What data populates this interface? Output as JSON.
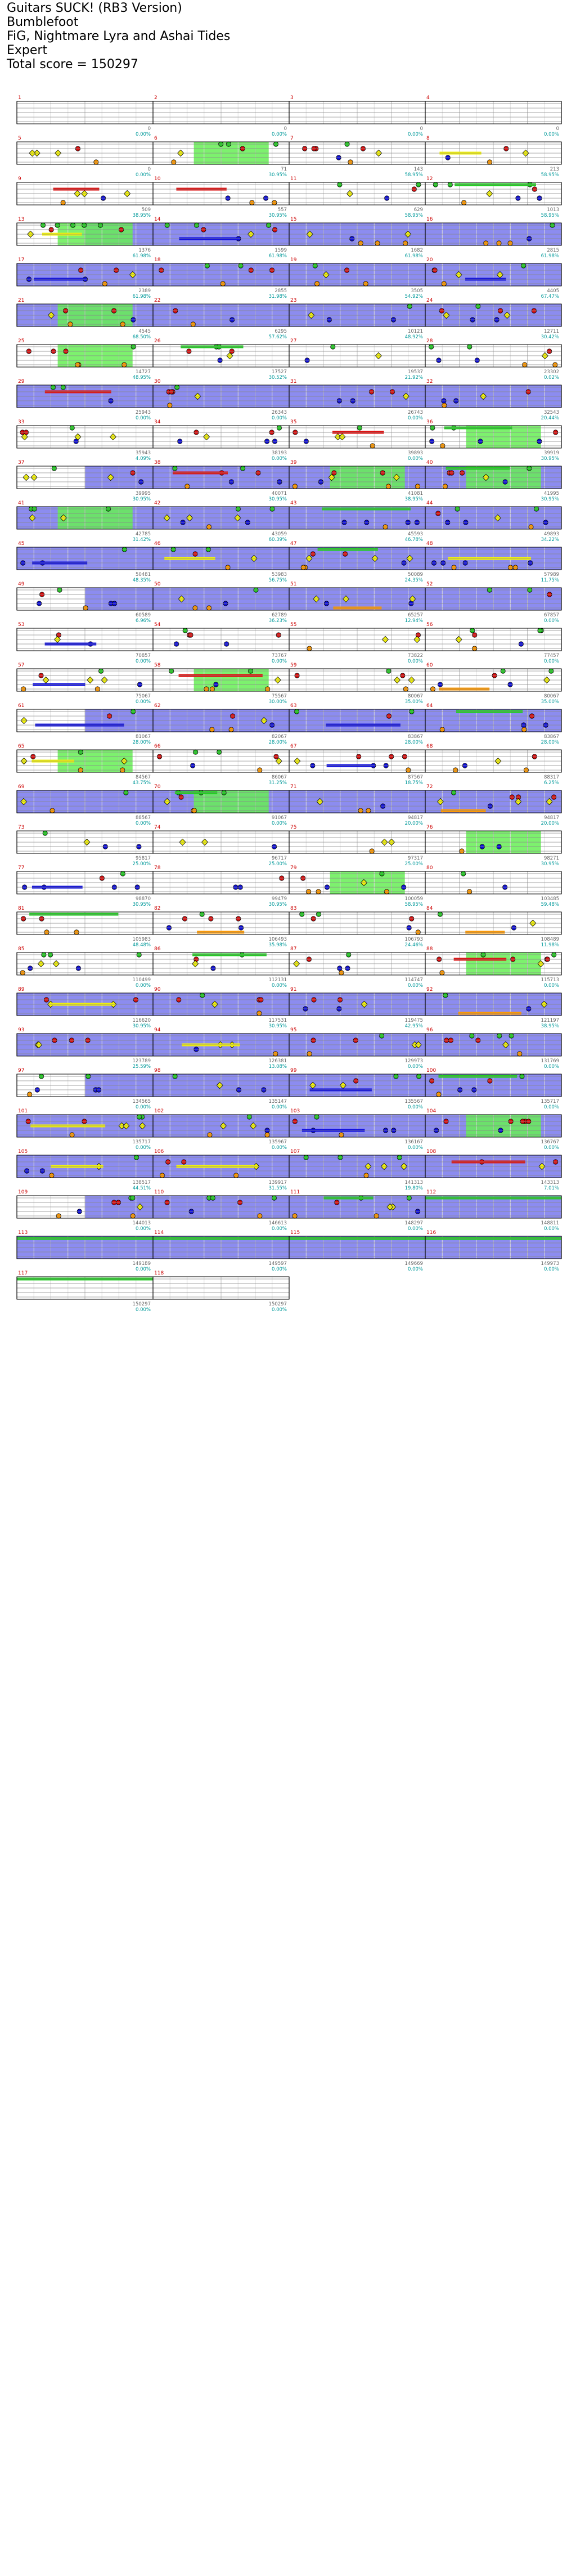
{
  "header": {
    "title": "Guitars SUCK! (RB3 Version)",
    "artist": "Bumblefoot",
    "charter": "FiG, Nightmare Lyra and Ashai Tides",
    "difficulty": "Expert",
    "total_score": "Total score = 150297"
  },
  "colors": {
    "green": "#22cc22",
    "red": "#dd1111",
    "yellow": "#f2f20a",
    "blue": "#1111dd",
    "orange": "#ff9900",
    "overdrive": "#8080ee",
    "solo": "#66ee55",
    "section_tick": "#333333",
    "score_text": "#666666",
    "percent_text": "#00999a",
    "tempo_text": "#999999"
  },
  "chart_data": {
    "type": "table",
    "columns": [
      "measure",
      "score",
      "percent"
    ],
    "measures": [
      {
        "n": 1,
        "score": "0",
        "pct": "0.00%"
      },
      {
        "n": 2,
        "score": "0",
        "pct": "0.00%"
      },
      {
        "n": 3,
        "score": "0",
        "pct": "0.00%"
      },
      {
        "n": 4,
        "score": "0",
        "pct": "0.00%"
      },
      {
        "n": 5,
        "score": "0",
        "pct": "0.00%"
      },
      {
        "n": 6,
        "score": "71",
        "pct": "30.95%"
      },
      {
        "n": 7,
        "score": "143",
        "pct": "58.95%"
      },
      {
        "n": 8,
        "score": "213",
        "pct": "58.95%"
      },
      {
        "n": 9,
        "score": "509",
        "pct": "38.95%"
      },
      {
        "n": 10,
        "score": "557",
        "pct": "30.95%"
      },
      {
        "n": 11,
        "score": "629",
        "pct": "58.95%"
      },
      {
        "n": 12,
        "score": "1013",
        "pct": "58.95%"
      },
      {
        "n": 13,
        "score": "1376",
        "pct": "61.98%"
      },
      {
        "n": 14,
        "score": "1599",
        "pct": "61.98%"
      },
      {
        "n": 15,
        "score": "1682",
        "pct": "61.98%"
      },
      {
        "n": 16,
        "score": "2815",
        "pct": "61.98%"
      },
      {
        "n": 17,
        "score": "2389",
        "pct": "61.98%"
      },
      {
        "n": 18,
        "score": "2855",
        "pct": "31.98%"
      },
      {
        "n": 19,
        "score": "3505",
        "pct": "54.92%"
      },
      {
        "n": 20,
        "score": "4405",
        "pct": "67.47%"
      },
      {
        "n": 21,
        "score": "4545",
        "pct": "68.50%"
      },
      {
        "n": 22,
        "score": "6295",
        "pct": "57.62%"
      },
      {
        "n": 23,
        "score": "10121",
        "pct": "48.92%"
      },
      {
        "n": 24,
        "score": "12711",
        "pct": "30.42%"
      },
      {
        "n": 25,
        "score": "14727",
        "pct": "48.95%"
      },
      {
        "n": 26,
        "score": "17527",
        "pct": "30.52%"
      },
      {
        "n": 27,
        "score": "19537",
        "pct": "21.92%"
      },
      {
        "n": 28,
        "score": "23302",
        "pct": "0.02%"
      },
      {
        "n": 29,
        "score": "25943",
        "pct": "0.00%"
      },
      {
        "n": 30,
        "score": "26343",
        "pct": "0.00%"
      },
      {
        "n": 31,
        "score": "26743",
        "pct": "0.00%"
      },
      {
        "n": 32,
        "score": "32543",
        "pct": "20.44%"
      },
      {
        "n": 33,
        "score": "35943",
        "pct": "4.09%"
      },
      {
        "n": 34,
        "score": "38193",
        "pct": "0.00%"
      },
      {
        "n": 35,
        "score": "39893",
        "pct": "0.00%"
      },
      {
        "n": 36,
        "score": "39919",
        "pct": "30.95%"
      },
      {
        "n": 37,
        "score": "39995",
        "pct": "30.95%"
      },
      {
        "n": 38,
        "score": "40071",
        "pct": "30.95%"
      },
      {
        "n": 39,
        "score": "41081",
        "pct": "38.95%"
      },
      {
        "n": 40,
        "score": "41995",
        "pct": "30.95%"
      },
      {
        "n": 41,
        "score": "42785",
        "pct": "31.42%"
      },
      {
        "n": 42,
        "score": "43059",
        "pct": "60.39%"
      },
      {
        "n": 43,
        "score": "45593",
        "pct": "46.78%"
      },
      {
        "n": 44,
        "score": "49893",
        "pct": "34.22%"
      },
      {
        "n": 45,
        "score": "50481",
        "pct": "48.35%"
      },
      {
        "n": 46,
        "score": "53983",
        "pct": "56.75%"
      },
      {
        "n": 47,
        "score": "50089",
        "pct": "24.35%"
      },
      {
        "n": 48,
        "score": "57989",
        "pct": "11.75%"
      },
      {
        "n": 49,
        "score": "60589",
        "pct": "6.96%"
      },
      {
        "n": 50,
        "score": "62789",
        "pct": "36.23%"
      },
      {
        "n": 51,
        "score": "65257",
        "pct": "12.94%"
      },
      {
        "n": 52,
        "score": "67857",
        "pct": "0.00%"
      },
      {
        "n": 53,
        "score": "70857",
        "pct": "0.00%"
      },
      {
        "n": 54,
        "score": "73767",
        "pct": "0.00%"
      },
      {
        "n": 55,
        "score": "73822",
        "pct": "0.00%"
      },
      {
        "n": 56,
        "score": "77457",
        "pct": "0.00%"
      },
      {
        "n": 57,
        "score": "75067",
        "pct": "0.00%"
      },
      {
        "n": 58,
        "score": "75567",
        "pct": "30.00%"
      },
      {
        "n": 59,
        "score": "80067",
        "pct": "35.00%"
      },
      {
        "n": 60,
        "score": "80067",
        "pct": "35.00%"
      },
      {
        "n": 61,
        "score": "81067",
        "pct": "28.00%"
      },
      {
        "n": 62,
        "score": "82067",
        "pct": "28.00%"
      },
      {
        "n": 63,
        "score": "83867",
        "pct": "28.00%"
      },
      {
        "n": 64,
        "score": "83867",
        "pct": "28.00%"
      },
      {
        "n": 65,
        "score": "84567",
        "pct": "43.75%"
      },
      {
        "n": 66,
        "score": "86067",
        "pct": "31.25%"
      },
      {
        "n": 67,
        "score": "87567",
        "pct": "18.75%"
      },
      {
        "n": 68,
        "score": "88317",
        "pct": "6.25%"
      },
      {
        "n": 69,
        "score": "88567",
        "pct": "0.00%"
      },
      {
        "n": 70,
        "score": "91067",
        "pct": "0.00%"
      },
      {
        "n": 71,
        "score": "94817",
        "pct": "20.00%"
      },
      {
        "n": 72,
        "score": "94817",
        "pct": "20.00%"
      },
      {
        "n": 73,
        "score": "95817",
        "pct": "25.00%"
      },
      {
        "n": 74,
        "score": "96717",
        "pct": "25.00%"
      },
      {
        "n": 75,
        "score": "97317",
        "pct": "25.00%"
      },
      {
        "n": 76,
        "score": "98271",
        "pct": "30.95%"
      },
      {
        "n": 77,
        "score": "98870",
        "pct": "30.95%"
      },
      {
        "n": 78,
        "score": "99479",
        "pct": "30.95%"
      },
      {
        "n": 79,
        "score": "100059",
        "pct": "58.95%"
      },
      {
        "n": 80,
        "score": "103485",
        "pct": "59.48%"
      },
      {
        "n": 81,
        "score": "105983",
        "pct": "48.48%"
      },
      {
        "n": 82,
        "score": "106493",
        "pct": "35.98%"
      },
      {
        "n": 83,
        "score": "106793",
        "pct": "24.46%"
      },
      {
        "n": 84,
        "score": "108489",
        "pct": "11.98%"
      },
      {
        "n": 85,
        "score": "110499",
        "pct": "0.00%"
      },
      {
        "n": 86,
        "score": "112131",
        "pct": "0.00%"
      },
      {
        "n": 87,
        "score": "114747",
        "pct": "0.00%"
      },
      {
        "n": 88,
        "score": "115713",
        "pct": "0.00%"
      },
      {
        "n": 89,
        "score": "116620",
        "pct": "30.95%"
      },
      {
        "n": 90,
        "score": "117531",
        "pct": "30.95%"
      },
      {
        "n": 91,
        "score": "119475",
        "pct": "42.95%"
      },
      {
        "n": 92,
        "score": "121197",
        "pct": "38.95%"
      },
      {
        "n": 93,
        "score": "123789",
        "pct": "25.59%"
      },
      {
        "n": 94,
        "score": "126381",
        "pct": "13.08%"
      },
      {
        "n": 95,
        "score": "129973",
        "pct": "0.00%"
      },
      {
        "n": 96,
        "score": "131769",
        "pct": "0.00%"
      },
      {
        "n": 97,
        "score": "134565",
        "pct": "0.00%"
      },
      {
        "n": 98,
        "score": "135147",
        "pct": "0.00%"
      },
      {
        "n": 99,
        "score": "135567",
        "pct": "0.00%"
      },
      {
        "n": 100,
        "score": "135717",
        "pct": "0.00%"
      },
      {
        "n": 101,
        "score": "135717",
        "pct": "0.00%"
      },
      {
        "n": 102,
        "score": "135967",
        "pct": "0.00%"
      },
      {
        "n": 103,
        "score": "136167",
        "pct": "0.00%"
      },
      {
        "n": 104,
        "score": "136767",
        "pct": "0.00%"
      },
      {
        "n": 105,
        "score": "138517",
        "pct": "44.51%"
      },
      {
        "n": 106,
        "score": "139917",
        "pct": "31.55%"
      },
      {
        "n": 107,
        "score": "141313",
        "pct": "19.80%"
      },
      {
        "n": 108,
        "score": "143313",
        "pct": "7.01%"
      },
      {
        "n": 109,
        "score": "144013",
        "pct": "0.00%"
      },
      {
        "n": 110,
        "score": "146613",
        "pct": "0.00%"
      },
      {
        "n": 111,
        "score": "148297",
        "pct": "0.00%"
      },
      {
        "n": 112,
        "score": "148811",
        "pct": "0.00%"
      },
      {
        "n": 113,
        "score": "149189",
        "pct": "0.00%"
      },
      {
        "n": 114,
        "score": "149597",
        "pct": "0.00%"
      },
      {
        "n": 115,
        "score": "149669",
        "pct": "0.00%"
      },
      {
        "n": 116,
        "score": "149973",
        "pct": "0.00%"
      },
      {
        "n": 117,
        "score": "150297",
        "pct": "0.00%"
      },
      {
        "n": 118,
        "score": "150297",
        "pct": "0.00%"
      }
    ]
  }
}
